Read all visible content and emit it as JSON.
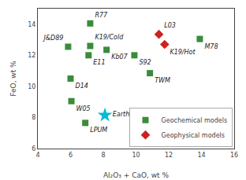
{
  "chart_data": {
    "type": "scatter",
    "xlabel": "Al₂O₃ + CaO, wt %",
    "ylabel": "FeO, wt %",
    "xlim": [
      4,
      16
    ],
    "ylim": [
      6,
      15
    ],
    "xticks": [
      4,
      6,
      8,
      10,
      12,
      14,
      16
    ],
    "yticks": [
      6,
      8,
      10,
      12,
      14
    ],
    "grid": false,
    "legend": "lower right",
    "series": [
      {
        "name": "Geochemical models",
        "color": "#3a8c3a",
        "marker": "square",
        "labels": [
          "R77",
          "J&D89",
          "K19/Cold",
          "E11",
          "Kb07",
          "S92",
          "D14",
          "TWM",
          "W05",
          "LPUM",
          "M78"
        ],
        "x": [
          7.2,
          5.85,
          7.2,
          7.1,
          8.2,
          9.9,
          6.0,
          10.85,
          6.05,
          6.9,
          13.9
        ],
        "values": [
          14.05,
          12.55,
          12.6,
          12.0,
          12.35,
          12.0,
          10.5,
          10.85,
          9.05,
          7.65,
          13.05
        ]
      },
      {
        "name": "Geophysical models",
        "color": "#cc2222",
        "marker": "diamond",
        "labels": [
          "L03",
          "K19/Hot"
        ],
        "x": [
          11.4,
          11.75
        ],
        "values": [
          13.35,
          12.7
        ]
      },
      {
        "color": "#00bcd4",
        "marker": "star",
        "labels": [
          "Earth"
        ],
        "x": [
          8.1
        ],
        "values": [
          8.15
        ]
      }
    ]
  }
}
